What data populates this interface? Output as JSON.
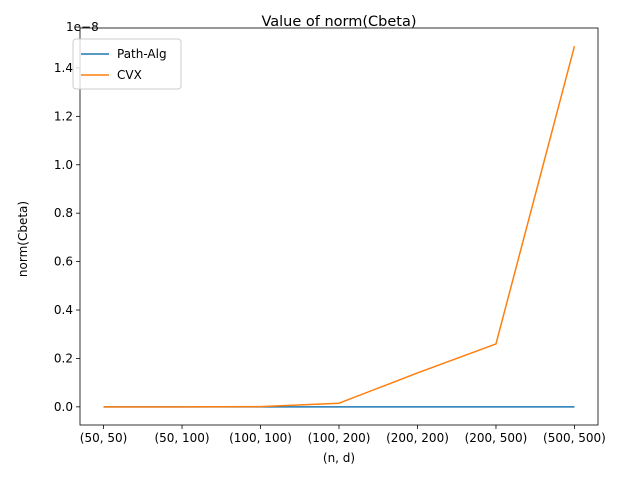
{
  "chart_data": {
    "type": "line",
    "title": "Value of norm(Cbeta)",
    "xlabel": "(n, d)",
    "ylabel": "norm(Cbeta)",
    "scale_label": "1e−8",
    "categories": [
      "(50, 50)",
      "(50, 100)",
      "(100, 100)",
      "(100, 200)",
      "(200, 200)",
      "(200, 500)",
      "(500, 500)"
    ],
    "ylim": [
      -0.075,
      1.565
    ],
    "yticks": [
      0.0,
      0.2,
      0.4,
      0.6,
      0.8,
      1.0,
      1.2,
      1.4
    ],
    "ytick_labels": [
      "0.0",
      "0.2",
      "0.4",
      "0.6",
      "0.8",
      "1.0",
      "1.2",
      "1.4"
    ],
    "grid": false,
    "legend_position": "top-left",
    "series": [
      {
        "name": "Path-Alg",
        "color": "#1f77b4",
        "values": [
          0.0,
          0.0,
          0.0,
          0.0,
          0.0,
          0.0,
          0.0
        ]
      },
      {
        "name": "CVX",
        "color": "#ff7f0e",
        "values": [
          0.0,
          0.0,
          0.001,
          0.015,
          0.14,
          0.26,
          1.49
        ]
      }
    ]
  }
}
